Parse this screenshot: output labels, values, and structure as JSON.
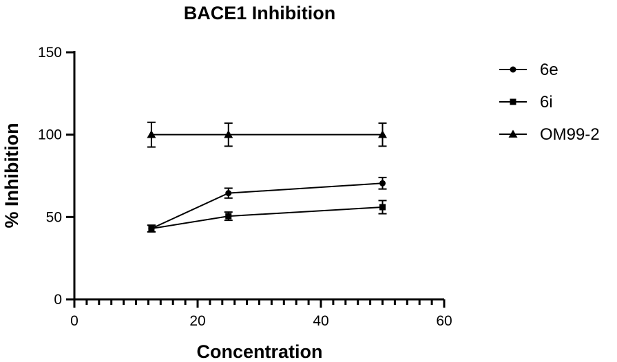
{
  "chart_data": {
    "type": "scatter",
    "title": "BACE1 Inhibition",
    "xlabel": "Concentration",
    "ylabel": "% Inhibition",
    "xlim": [
      0,
      60
    ],
    "ylim": [
      0,
      150
    ],
    "x_ticks": [
      0,
      20,
      40,
      60
    ],
    "y_ticks": [
      0,
      50,
      100,
      150
    ],
    "x_minor_step": 2,
    "grid": false,
    "legend_position": "right",
    "series": [
      {
        "name": "6e",
        "marker": "circle",
        "points": [
          {
            "x": 12.5,
            "y": 43,
            "err": 2
          },
          {
            "x": 25,
            "y": 64.5,
            "err": 3
          },
          {
            "x": 50,
            "y": 70.5,
            "err": 3.5
          }
        ]
      },
      {
        "name": "6i",
        "marker": "square",
        "points": [
          {
            "x": 12.5,
            "y": 43,
            "err": 2
          },
          {
            "x": 25,
            "y": 50.5,
            "err": 2.5
          },
          {
            "x": 50,
            "y": 56,
            "err": 4
          }
        ]
      },
      {
        "name": "OM99-2",
        "marker": "triangle",
        "points": [
          {
            "x": 12.5,
            "y": 100,
            "err": 7.5
          },
          {
            "x": 25,
            "y": 100,
            "err": 7
          },
          {
            "x": 50,
            "y": 100,
            "err": 7
          }
        ]
      }
    ]
  }
}
